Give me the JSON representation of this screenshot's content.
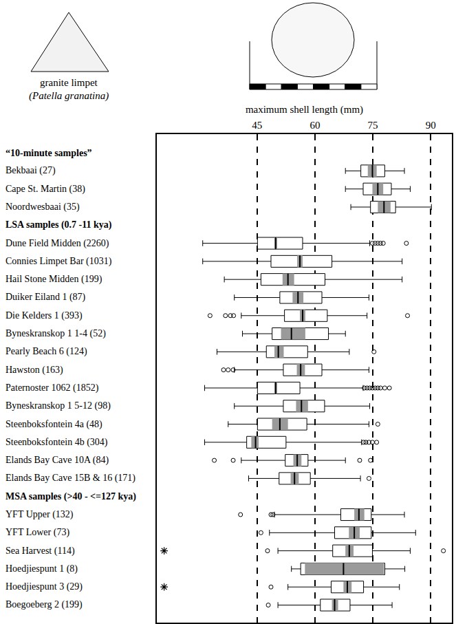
{
  "chart_data": {
    "type": "box",
    "orientation": "horizontal",
    "title": "granite limpet",
    "subtitle": "(Patella granatina)",
    "x_label": "maximum shell length (mm)",
    "xlim": [
      19,
      95.5
    ],
    "xticks": [
      45,
      60,
      75,
      90
    ],
    "grid": true,
    "color": "#000000",
    "groups": [
      {
        "name": "“10-minute samples”",
        "boxes": [
          {
            "label": "Bekbaai (27)",
            "whisker_low": 67.9,
            "q1": 71.9,
            "median": 74.9,
            "q3": 78.1,
            "whisker_high": 83.2,
            "median_ci": [
              73.7,
              76.0
            ],
            "outliers": [],
            "extremes": []
          },
          {
            "label": "Cape St. Martin (38)",
            "whisker_low": 67.9,
            "q1": 72.5,
            "median": 76.3,
            "q3": 79.8,
            "whisker_high": 84.7,
            "median_ci": [
              74.9,
              77.7
            ],
            "outliers": [],
            "extremes": []
          },
          {
            "label": "Noordwesbaai (35)",
            "whisker_low": 69.3,
            "q1": 74.4,
            "median": 77.9,
            "q3": 80.9,
            "whisker_high": 90.2,
            "median_ci": [
              76.3,
              79.6
            ],
            "outliers": [],
            "extremes": []
          }
        ]
      },
      {
        "name": "LSA samples (0.7 -11 kya)",
        "boxes": [
          {
            "label": "Dune Field Midden (2260)",
            "whisker_low": 30.9,
            "q1": 45.1,
            "median": 49.8,
            "q3": 56.8,
            "whisker_high": 74.2,
            "median_ci": [
              49.5,
              50.2
            ],
            "outliers": [
              74.9,
              75.6,
              76.3,
              77.0,
              77.7,
              83.7
            ],
            "extremes": []
          },
          {
            "label": "Connies Limpet Bar (1031)",
            "whisker_low": 30.9,
            "q1": 48.6,
            "median": 56.1,
            "q3": 64.4,
            "whisker_high": 82.6,
            "median_ci": [
              55.4,
              56.8
            ],
            "outliers": [],
            "extremes": []
          },
          {
            "label": "Hail Stone Midden (199)",
            "whisker_low": 36.5,
            "q1": 46.0,
            "median": 53.0,
            "q3": 62.6,
            "whisker_high": 82.6,
            "median_ci": [
              51.6,
              54.6
            ],
            "outliers": [],
            "extremes": []
          },
          {
            "label": "Duiker Eiland 1 (87)",
            "whisker_low": 39.1,
            "q1": 50.9,
            "median": 55.6,
            "q3": 61.8,
            "whisker_high": 74.0,
            "median_ci": [
              54.2,
              57.0
            ],
            "outliers": [],
            "extremes": []
          },
          {
            "label": "Die Kelders 1 (393)",
            "whisker_low": 40.9,
            "q1": 52.1,
            "median": 56.8,
            "q3": 63.2,
            "whisker_high": 73.5,
            "median_ci": [
              56.1,
              57.5
            ],
            "outliers": [
              32.8,
              36.8,
              38.1,
              38.9,
              84.0
            ],
            "extremes": []
          },
          {
            "label": "Byneskranskop 1 1-4 (52)",
            "whisker_low": 41.2,
            "q1": 48.9,
            "median": 53.9,
            "q3": 63.5,
            "whisker_high": 67.9,
            "median_ci": [
              51.2,
              57.5
            ],
            "outliers": [],
            "extremes": []
          },
          {
            "label": "Pearly Beach 6 (124)",
            "whisker_low": 34.6,
            "q1": 47.4,
            "median": 50.5,
            "q3": 58.1,
            "whisker_high": 68.9,
            "median_ci": [
              49.5,
              51.9
            ],
            "outliers": [
              75.3
            ],
            "extremes": []
          },
          {
            "label": "Hawston (163)",
            "whisker_low": 39.1,
            "q1": 51.8,
            "median": 56.3,
            "q3": 61.8,
            "whisker_high": 74.0,
            "median_ci": [
              55.3,
              57.4
            ],
            "outliers": [
              36.3,
              37.5,
              38.8
            ],
            "extremes": []
          },
          {
            "label": "Paternoster 1062 (1852)",
            "whisker_low": 31.4,
            "q1": 45.1,
            "median": 49.8,
            "q3": 56.1,
            "whisker_high": 72.5,
            "median_ci": [
              49.5,
              50.2
            ],
            "outliers": [
              72.8,
              73.5,
              74.2,
              74.9,
              75.6,
              76.3,
              77.0,
              78.1,
              79.3
            ],
            "extremes": []
          },
          {
            "label": "Byneskranskop 1 5-12 (98)",
            "whisker_low": 39.1,
            "q1": 51.8,
            "median": 56.5,
            "q3": 62.5,
            "whisker_high": 74.2,
            "median_ci": [
              55.1,
              58.2
            ],
            "outliers": [],
            "extremes": []
          },
          {
            "label": "Steenboksfontein 4a (48)",
            "whisker_low": 37.5,
            "q1": 45.1,
            "median": 50.9,
            "q3": 57.9,
            "whisker_high": 74.0,
            "median_ci": [
              48.9,
              53.0
            ],
            "outliers": [
              76.3
            ],
            "extremes": []
          },
          {
            "label": "Steenboksfontein 4b (304)",
            "whisker_low": 31.4,
            "q1": 42.3,
            "median": 44.6,
            "q3": 52.5,
            "whisker_high": 72.1,
            "median_ci": [
              43.5,
              45.4
            ],
            "outliers": [
              72.6,
              73.2,
              74.0,
              74.9,
              76.0
            ],
            "extremes": []
          },
          {
            "label": "Elands Bay Cave 10A (84)",
            "whisker_low": 40.9,
            "q1": 52.3,
            "median": 55.4,
            "q3": 58.2,
            "whisker_high": 67.9,
            "median_ci": [
              54.4,
              56.5
            ],
            "outliers": [
              33.9,
              38.8,
              71.6,
              74.4
            ],
            "extremes": []
          },
          {
            "label": "Elands Bay Cave 15B & 16 (171)",
            "whisker_low": 42.8,
            "q1": 50.7,
            "median": 54.7,
            "q3": 58.8,
            "whisker_high": 71.8,
            "median_ci": [
              53.7,
              55.8
            ],
            "outliers": [
              74.0
            ],
            "extremes": []
          }
        ]
      },
      {
        "name": "MSA samples (>40 - <=127 kya)",
        "boxes": [
          {
            "label": "YFT Upper (132)",
            "whisker_low": 49.5,
            "q1": 66.7,
            "median": 71.4,
            "q3": 74.6,
            "whisker_high": 83.2,
            "median_ci": [
              70.2,
              72.8
            ],
            "outliers": [
              40.7,
              48.6,
              49.1
            ],
            "extremes": []
          },
          {
            "label": "YFT Lower (73)",
            "whisker_low": 48.2,
            "q1": 65.1,
            "median": 70.2,
            "q3": 74.6,
            "whisker_high": 86.1,
            "median_ci": [
              68.8,
              71.6
            ],
            "outliers": [
              46.0
            ],
            "extremes": []
          },
          {
            "label": "Sea Harvest (114)",
            "whisker_low": 50.4,
            "q1": 64.6,
            "median": 68.9,
            "q3": 74.9,
            "whisker_high": 84.7,
            "median_ci": [
              67.9,
              70.0
            ],
            "outliers": [
              47.7,
              93.3
            ],
            "extremes": [
              20.9
            ]
          },
          {
            "label": "Hoedjiespunt 1 (8)",
            "whisker_low": 53.9,
            "q1": 56.3,
            "median": 67.4,
            "q3": 78.1,
            "whisker_high": 83.3,
            "median_ci": [
              57.4,
              77.9
            ],
            "outliers": [],
            "extremes": []
          },
          {
            "label": "Hoedjiespunt 3 (29)",
            "whisker_low": 53.0,
            "q1": 64.2,
            "median": 68.4,
            "q3": 72.6,
            "whisker_high": 81.9,
            "median_ci": [
              67.4,
              69.5
            ],
            "outliers": [
              48.6
            ],
            "extremes": [
              20.9
            ]
          },
          {
            "label": "Boegoeberg 2 (199)",
            "whisker_low": 50.4,
            "q1": 61.4,
            "median": 65.1,
            "q3": 69.1,
            "whisker_high": 80.0,
            "median_ci": [
              64.4,
              66.0
            ],
            "outliers": [
              47.9
            ],
            "extremes": []
          }
        ]
      }
    ]
  }
}
